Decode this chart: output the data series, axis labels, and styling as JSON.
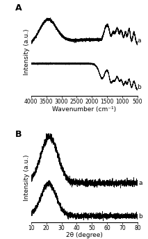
{
  "panel_A": {
    "label": "A",
    "xlabel": "Wavenumber (cm⁻¹)",
    "ylabel": "Intensity (a.u.)",
    "xticks": [
      4000,
      3500,
      3000,
      2500,
      2000,
      1500,
      1000,
      500
    ]
  },
  "panel_B": {
    "label": "B",
    "xlabel": "2θ (degree)",
    "ylabel": "Intensity (a.u.)",
    "xticks": [
      10,
      20,
      30,
      40,
      50,
      60,
      70,
      80
    ]
  },
  "line_color": "#000000",
  "background_color": "#ffffff",
  "label_fontsize": 6.5,
  "tick_fontsize": 5.5,
  "panel_label_fontsize": 9
}
